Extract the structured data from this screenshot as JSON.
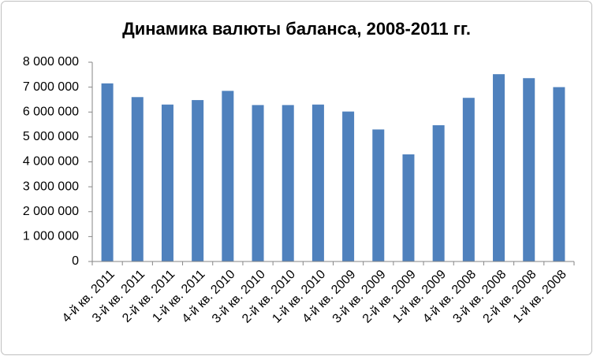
{
  "chart_data": {
    "type": "bar",
    "title": "Динамика валюты баланса, 2008-2011 гг.",
    "categories": [
      "4-й кв. 2011",
      "3-й кв. 2011",
      "2-й кв. 2011",
      "1-й кв. 2011",
      "4-й кв. 2010",
      "3-й кв. 2010",
      "2-й кв. 2010",
      "1-й кв. 2010",
      "4-й кв. 2009",
      "3-й кв. 2009",
      "2-й кв. 2009",
      "1-й кв. 2009",
      "4-й кв. 2008",
      "3-й кв. 2008",
      "2-й кв. 2008",
      "1-й кв. 2008"
    ],
    "values": [
      7150000,
      6600000,
      6300000,
      6480000,
      6850000,
      6280000,
      6280000,
      6300000,
      6020000,
      5300000,
      4300000,
      5470000,
      6570000,
      7520000,
      7360000,
      7000000
    ],
    "color": "#4f81bd",
    "ylim": [
      0,
      8000000
    ],
    "yticks": [
      0,
      {
        "value": 1000000,
        "label": "1 000 000"
      },
      {
        "value": 2000000,
        "label": "2 000 000"
      },
      {
        "value": 3000000,
        "label": "3 000 000"
      },
      {
        "value": 4000000,
        "label": "4 000 000"
      },
      {
        "value": 5000000,
        "label": "5 000 000"
      },
      {
        "value": 6000000,
        "label": "6 000 000"
      },
      {
        "value": 7000000,
        "label": "7 000 000"
      },
      {
        "value": 8000000,
        "label": "8 000 000"
      }
    ],
    "grid": false
  }
}
